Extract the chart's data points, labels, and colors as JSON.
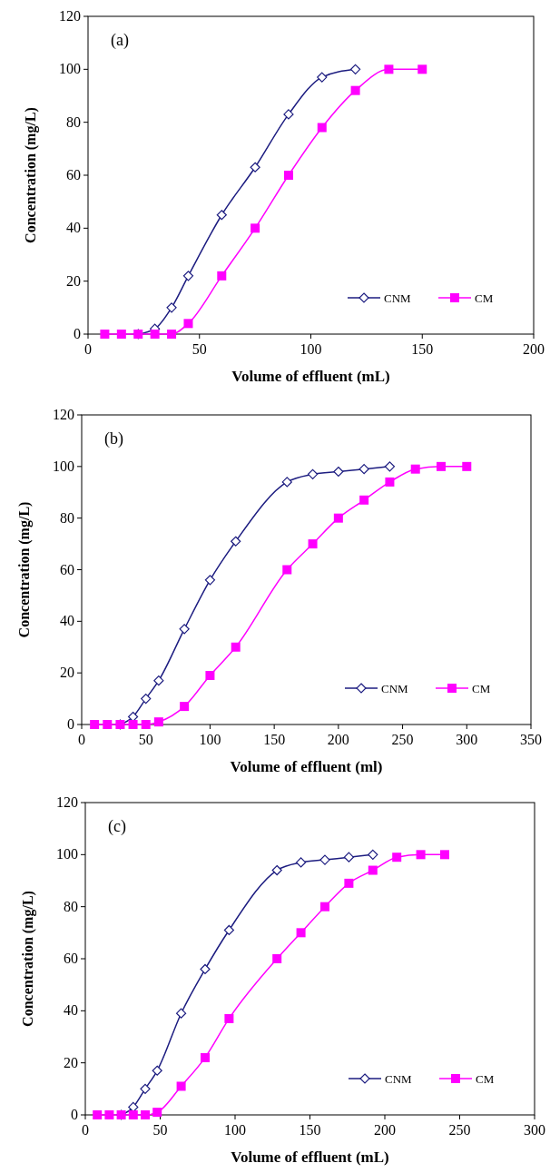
{
  "chart_data": [
    {
      "type": "line",
      "xlabel": "Volume of effluent (mL)",
      "ylabel": "Concentration (mg/L)",
      "annotations": [
        "(a)"
      ],
      "xlim": [
        0,
        200
      ],
      "xticks": [
        0,
        50,
        100,
        150,
        200
      ],
      "ylim": [
        0,
        120
      ],
      "yticks": [
        0,
        20,
        40,
        60,
        80,
        100,
        120
      ],
      "legend": "bottom right",
      "series": [
        {
          "name": "CNM",
          "color": "#1c1c80",
          "marker": "diamond",
          "x": [
            22.5,
            30,
            37.5,
            45,
            60,
            75,
            90,
            105,
            120
          ],
          "values": [
            0,
            2,
            10,
            22,
            45,
            63,
            83,
            97,
            100
          ]
        },
        {
          "name": "CM",
          "color": "#ff00ff",
          "marker": "square",
          "x": [
            7.5,
            15,
            22.5,
            30,
            37.5,
            45,
            60,
            75,
            90,
            105,
            120,
            135,
            150
          ],
          "values": [
            0,
            0,
            0,
            0,
            0,
            4,
            22,
            40,
            60,
            78,
            92,
            100,
            100
          ]
        }
      ]
    },
    {
      "type": "line",
      "xlabel": "Volume of effluent (ml)",
      "ylabel": "Concentration (mg/L)",
      "annotations": [
        "(b)"
      ],
      "xlim": [
        0,
        350
      ],
      "xticks": [
        0,
        50,
        100,
        150,
        200,
        250,
        300,
        350
      ],
      "ylim": [
        0,
        120
      ],
      "yticks": [
        0,
        20,
        40,
        60,
        80,
        100,
        120
      ],
      "legend": "bottom right",
      "series": [
        {
          "name": "CNM",
          "color": "#1c1c80",
          "marker": "diamond",
          "x": [
            30,
            40,
            50,
            60,
            80,
            100,
            120,
            160,
            180,
            200,
            220,
            240
          ],
          "values": [
            0,
            3,
            10,
            17,
            37,
            56,
            71,
            94,
            97,
            98,
            99,
            100
          ]
        },
        {
          "name": "CM",
          "color": "#ff00ff",
          "marker": "square",
          "x": [
            10,
            20,
            30,
            40,
            50,
            60,
            80,
            100,
            120,
            160,
            180,
            200,
            220,
            240,
            260,
            280,
            300
          ],
          "values": [
            0,
            0,
            0,
            0,
            0,
            1,
            7,
            19,
            30,
            60,
            70,
            80,
            87,
            94,
            99,
            100,
            100
          ]
        }
      ]
    },
    {
      "type": "line",
      "xlabel": "Volume of effluent (mL)",
      "ylabel": "Concentration (mg/L)",
      "annotations": [
        "(c)"
      ],
      "xlim": [
        0,
        300
      ],
      "xticks": [
        0,
        50,
        100,
        150,
        200,
        250,
        300
      ],
      "ylim": [
        0,
        120
      ],
      "yticks": [
        0,
        20,
        40,
        60,
        80,
        100,
        120
      ],
      "legend": "bottom right",
      "series": [
        {
          "name": "CNM",
          "color": "#1c1c80",
          "marker": "diamond",
          "x": [
            24,
            32,
            40,
            48,
            64,
            80,
            96,
            128,
            144,
            160,
            176,
            192
          ],
          "values": [
            0,
            3,
            10,
            17,
            39,
            56,
            71,
            94,
            97,
            98,
            99,
            100
          ]
        },
        {
          "name": "CM",
          "color": "#ff00ff",
          "marker": "square",
          "x": [
            8,
            16,
            24,
            32,
            40,
            48,
            64,
            80,
            96,
            128,
            144,
            160,
            176,
            192,
            208,
            224,
            240
          ],
          "values": [
            0,
            0,
            0,
            0,
            0,
            1,
            11,
            22,
            37,
            60,
            70,
            80,
            89,
            94,
            99,
            100,
            100
          ]
        }
      ]
    }
  ]
}
